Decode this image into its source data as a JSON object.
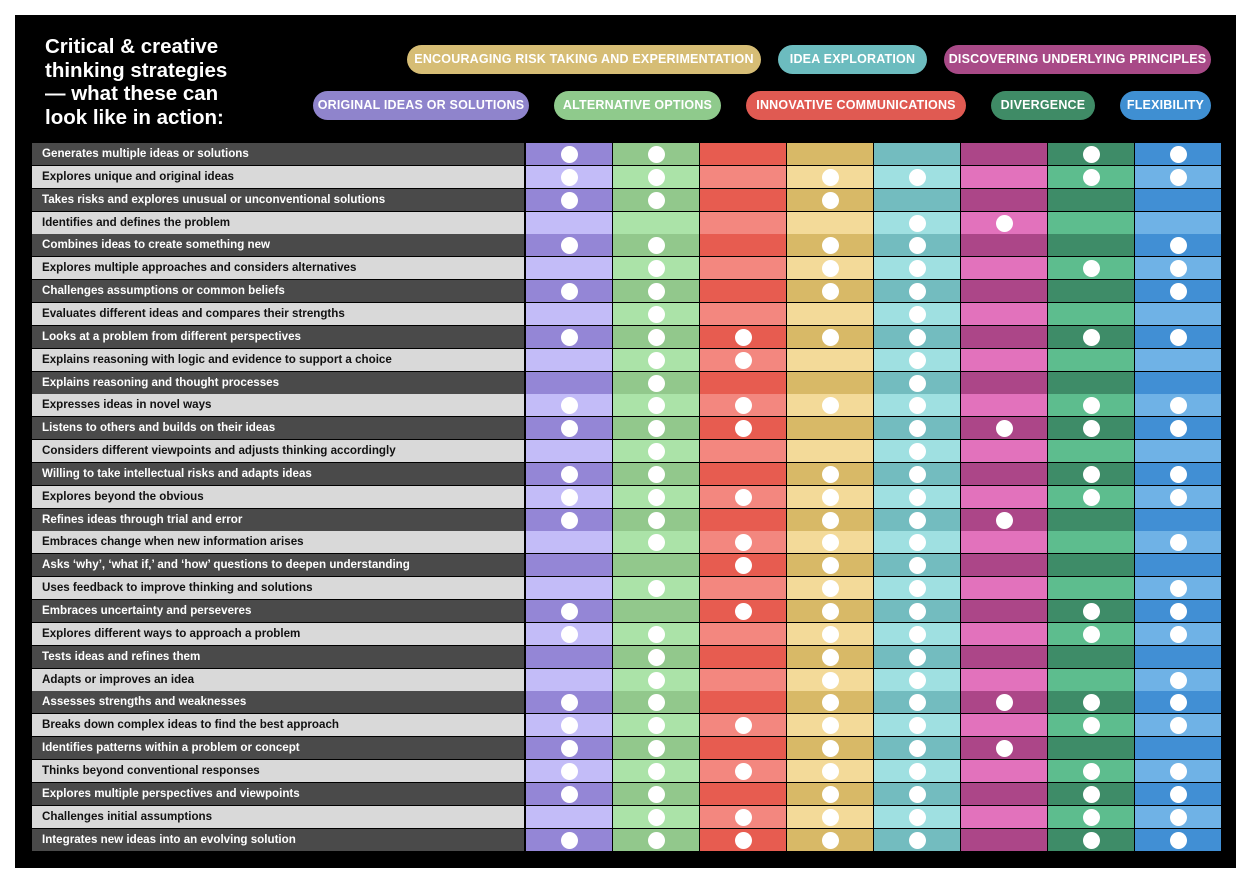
{
  "title": "Critical  & creative\nthinking strategies\n— what these can\nlook like in action:",
  "legend": [
    {
      "label": "ENCOURAGING RISK TAKING AND EXPERIMENTATION",
      "color": "#d6bd75"
    },
    {
      "label": "IDEA EXPLORATION",
      "color": "#6cbcbf"
    },
    {
      "label": "DISCOVERING UNDERLYING PRINCIPLES",
      "color": "#a84a87"
    },
    {
      "label": "ORIGINAL IDEAS OR SOLUTIONS",
      "color": "#8f84cc"
    },
    {
      "label": "ALTERNATIVE OPTIONS",
      "color": "#8fca8c"
    },
    {
      "label": "INNOVATIVE COMMUNICATIONS",
      "color": "#e05a52"
    },
    {
      "label": "DIVERGENCE",
      "color": "#3f8b66"
    },
    {
      "label": "FLEXIBILITY",
      "color": "#3f8fd2"
    }
  ],
  "column_colors": {
    "dark": [
      "#9486d6",
      "#92c88c",
      "#e75c50",
      "#d8b967",
      "#73bcbf",
      "#ac4688",
      "#3e8c68",
      "#418fd4"
    ],
    "light": [
      "#c3bcf8",
      "#abe3a8",
      "#f3877f",
      "#f3da99",
      "#9fe0e1",
      "#e272bc",
      "#5dbd8e",
      "#6fb2e6"
    ]
  },
  "rows": [
    {
      "label": "Generates multiple ideas or solutions",
      "dots": [
        1,
        1,
        0,
        0,
        0,
        0,
        1,
        1
      ]
    },
    {
      "label": "Explores unique and original ideas",
      "dots": [
        1,
        1,
        0,
        1,
        1,
        0,
        1,
        1
      ]
    },
    {
      "label": "Takes risks and explores unusual or unconventional solutions",
      "dots": [
        1,
        1,
        0,
        1,
        0,
        0,
        0,
        0
      ]
    },
    {
      "label": "Identifies and defines the problem",
      "dots": [
        0,
        0,
        0,
        0,
        1,
        1,
        0,
        0
      ]
    },
    {
      "label": "Combines ideas to create something new",
      "dots": [
        1,
        1,
        0,
        1,
        1,
        0,
        0,
        1
      ]
    },
    {
      "label": "Explores multiple approaches and considers alternatives",
      "dots": [
        0,
        1,
        0,
        1,
        1,
        0,
        1,
        1
      ]
    },
    {
      "label": "Challenges assumptions or common beliefs",
      "dots": [
        1,
        1,
        0,
        1,
        1,
        0,
        0,
        1
      ]
    },
    {
      "label": "Evaluates different ideas and compares their strengths",
      "dots": [
        0,
        1,
        0,
        0,
        1,
        0,
        0,
        0
      ]
    },
    {
      "label": "Looks at a problem from different perspectives",
      "dots": [
        1,
        1,
        1,
        1,
        1,
        0,
        1,
        1
      ]
    },
    {
      "label": "Explains reasoning with logic and evidence to support a choice",
      "dots": [
        0,
        1,
        1,
        0,
        1,
        0,
        0,
        0
      ]
    },
    {
      "label": "Explains reasoning and thought processes",
      "dots": [
        0,
        1,
        0,
        0,
        1,
        0,
        0,
        0
      ]
    },
    {
      "label": "Expresses ideas in novel ways",
      "dots": [
        1,
        1,
        1,
        1,
        1,
        0,
        1,
        1
      ]
    },
    {
      "label": "Listens to others and builds on their ideas",
      "dots": [
        1,
        1,
        1,
        0,
        1,
        1,
        1,
        1
      ]
    },
    {
      "label": "Considers different viewpoints and adjusts thinking accordingly",
      "dots": [
        0,
        1,
        0,
        0,
        1,
        0,
        0,
        0
      ]
    },
    {
      "label": "Willing to take intellectual risks and adapts ideas",
      "dots": [
        1,
        1,
        0,
        1,
        1,
        0,
        1,
        1
      ]
    },
    {
      "label": "Explores beyond the obvious",
      "dots": [
        1,
        1,
        1,
        1,
        1,
        0,
        1,
        1
      ]
    },
    {
      "label": "Refines ideas through trial and error",
      "dots": [
        1,
        1,
        0,
        1,
        1,
        1,
        0,
        0
      ]
    },
    {
      "label": "Embraces change when new information arises",
      "dots": [
        0,
        1,
        1,
        1,
        1,
        0,
        0,
        1
      ]
    },
    {
      "label": "Asks ‘why’, ‘what if,’ and ‘how’ questions to deepen understanding",
      "dots": [
        0,
        0,
        1,
        1,
        1,
        0,
        0,
        0
      ]
    },
    {
      "label": "Uses feedback to improve thinking and solutions",
      "dots": [
        0,
        1,
        0,
        1,
        1,
        0,
        0,
        1
      ]
    },
    {
      "label": "Embraces uncertainty and perseveres",
      "dots": [
        1,
        0,
        1,
        1,
        1,
        0,
        1,
        1
      ]
    },
    {
      "label": "Explores different ways to approach a problem",
      "dots": [
        1,
        1,
        0,
        1,
        1,
        0,
        1,
        1
      ]
    },
    {
      "label": "Tests ideas and refines them",
      "dots": [
        0,
        1,
        0,
        1,
        1,
        0,
        0,
        0
      ]
    },
    {
      "label": "Adapts or improves an idea",
      "dots": [
        0,
        1,
        0,
        1,
        1,
        0,
        0,
        1
      ]
    },
    {
      "label": "Assesses strengths and weaknesses",
      "dots": [
        1,
        1,
        0,
        1,
        1,
        1,
        1,
        1
      ]
    },
    {
      "label": "Breaks down complex ideas to find the best approach",
      "dots": [
        1,
        1,
        1,
        1,
        1,
        0,
        1,
        1
      ]
    },
    {
      "label": "Identifies patterns within a problem or concept",
      "dots": [
        1,
        1,
        0,
        1,
        1,
        1,
        0,
        0
      ]
    },
    {
      "label": "Thinks beyond conventional responses",
      "dots": [
        1,
        1,
        1,
        1,
        1,
        0,
        1,
        1
      ]
    },
    {
      "label": "Explores multiple perspectives and viewpoints",
      "dots": [
        1,
        1,
        0,
        1,
        1,
        0,
        1,
        1
      ]
    },
    {
      "label": "Challenges initial assumptions",
      "dots": [
        0,
        1,
        1,
        1,
        1,
        0,
        1,
        1
      ]
    },
    {
      "label": "Integrates new ideas into an evolving solution",
      "dots": [
        1,
        1,
        1,
        1,
        1,
        0,
        1,
        1
      ]
    }
  ]
}
